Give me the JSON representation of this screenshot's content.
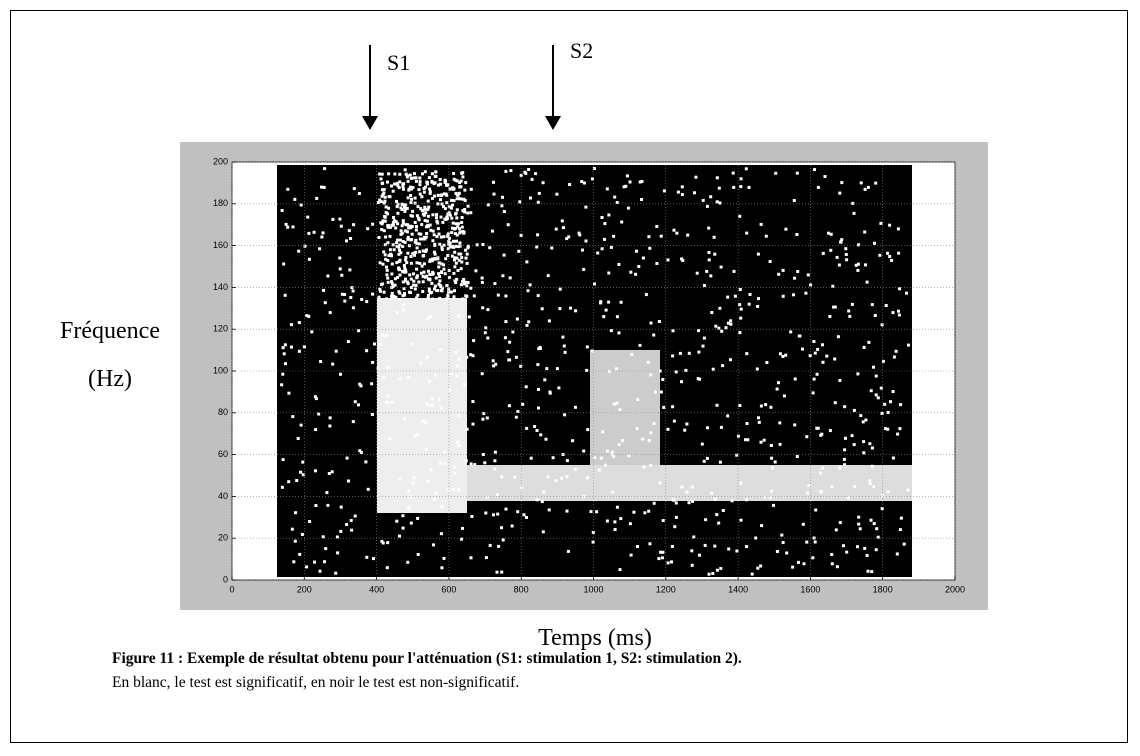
{
  "figure": {
    "markers": [
      {
        "label": "S1"
      },
      {
        "label": "S2"
      }
    ],
    "y_label_line1": "Fréquence",
    "y_label_line2": "(Hz)",
    "x_label": "Temps (ms)",
    "xlim": [
      0,
      2000
    ],
    "ylim": [
      0,
      200
    ],
    "xticks": [
      0,
      200,
      400,
      600,
      800,
      1000,
      1200,
      1400,
      1600,
      1800,
      2000
    ],
    "yticks": [
      0,
      20,
      40,
      60,
      80,
      100,
      120,
      140,
      160,
      180,
      200
    ],
    "grid": true
  },
  "caption": {
    "title": "Figure 11 : Exemple de résultat obtenu pour l'atténuation (S1: stimulation 1, S2: stimulation 2).",
    "text": "En blanc, le test est significatif, en noir le test est non-significatif."
  }
}
